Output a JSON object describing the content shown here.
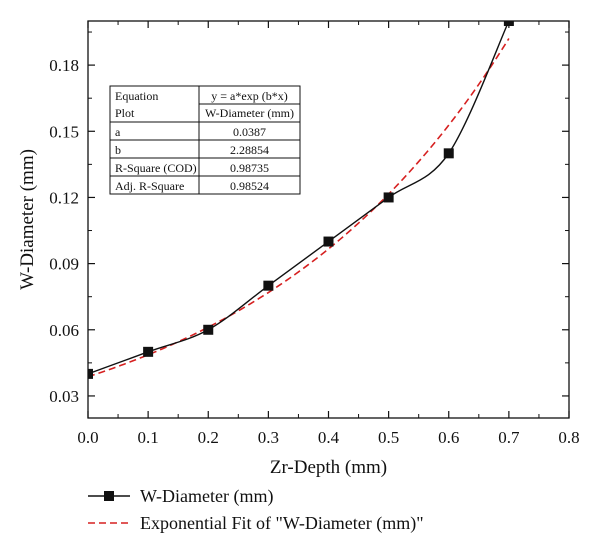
{
  "chart_data": {
    "type": "line",
    "xlabel": "Zr-Depth (mm)",
    "ylabel": "W-Diameter (mm)",
    "xlim": [
      0.0,
      0.8
    ],
    "ylim": [
      0.02,
      0.2
    ],
    "x_ticks": [
      "0.0",
      "0.1",
      "0.2",
      "0.3",
      "0.4",
      "0.5",
      "0.6",
      "0.7",
      "0.8"
    ],
    "y_ticks": [
      "0.03",
      "0.06",
      "0.09",
      "0.12",
      "0.15",
      "0.18"
    ],
    "series": [
      {
        "name": "W-Diameter (mm)",
        "style": "line-with-square-markers",
        "color": "#111111",
        "x": [
          0.0,
          0.1,
          0.2,
          0.3,
          0.4,
          0.5,
          0.6,
          0.7
        ],
        "y": [
          0.04,
          0.05,
          0.06,
          0.08,
          0.1,
          0.12,
          0.14,
          0.2
        ]
      },
      {
        "name": "Exponential Fit of \"W-Diameter (mm)\"",
        "style": "dashed",
        "color": "#d62020",
        "equation": "y = a*exp (b*x)",
        "a": 0.0387,
        "b": 2.28854
      }
    ],
    "legend_position": "bottom",
    "fit_table": {
      "header": [
        "Equation",
        "y = a*exp (b*x)"
      ],
      "rows": [
        [
          "Plot",
          "W-Diameter (mm)"
        ],
        [
          "a",
          "0.0387"
        ],
        [
          "b",
          "2.28854"
        ],
        [
          "R-Square (COD)",
          "0.98735"
        ],
        [
          "Adj. R-Square",
          "0.98524"
        ]
      ]
    }
  }
}
